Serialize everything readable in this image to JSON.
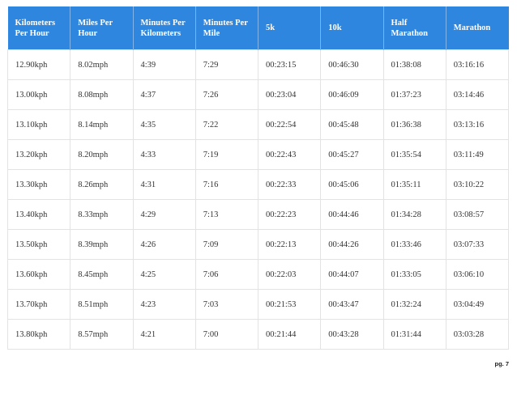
{
  "table": {
    "headers": [
      "Kilometers Per Hour",
      "Miles Per Hour",
      "Minutes Per Kilometers",
      "Minutes Per Mile",
      "5k",
      "10k",
      "Half Marathon",
      "Marathon"
    ],
    "rows": [
      [
        "12.90kph",
        "8.02mph",
        "4:39",
        "7:29",
        "00:23:15",
        "00:46:30",
        "01:38:08",
        "03:16:16"
      ],
      [
        "13.00kph",
        "8.08mph",
        "4:37",
        "7:26",
        "00:23:04",
        "00:46:09",
        "01:37:23",
        "03:14:46"
      ],
      [
        "13.10kph",
        "8.14mph",
        "4:35",
        "7:22",
        "00:22:54",
        "00:45:48",
        "01:36:38",
        "03:13:16"
      ],
      [
        "13.20kph",
        "8.20mph",
        "4:33",
        "7:19",
        "00:22:43",
        "00:45:27",
        "01:35:54",
        "03:11:49"
      ],
      [
        "13.30kph",
        "8.26mph",
        "4:31",
        "7:16",
        "00:22:33",
        "00:45:06",
        "01:35:11",
        "03:10:22"
      ],
      [
        "13.40kph",
        "8.33mph",
        "4:29",
        "7:13",
        "00:22:23",
        "00:44:46",
        "01:34:28",
        "03:08:57"
      ],
      [
        "13.50kph",
        "8.39mph",
        "4:26",
        "7:09",
        "00:22:13",
        "00:44:26",
        "01:33:46",
        "03:07:33"
      ],
      [
        "13.60kph",
        "8.45mph",
        "4:25",
        "7:06",
        "00:22:03",
        "00:44:07",
        "01:33:05",
        "03:06:10"
      ],
      [
        "13.70kph",
        "8.51mph",
        "4:23",
        "7:03",
        "00:21:53",
        "00:43:47",
        "01:32:24",
        "03:04:49"
      ],
      [
        "13.80kph",
        "8.57mph",
        "4:21",
        "7:00",
        "00:21:44",
        "00:43:28",
        "01:31:44",
        "03:03:28"
      ]
    ]
  },
  "footer": {
    "page_number": "pg. 7"
  },
  "colors": {
    "header_background": "#2e86de",
    "header_text": "#ffffff",
    "grid_line": "#e3e3e3"
  }
}
